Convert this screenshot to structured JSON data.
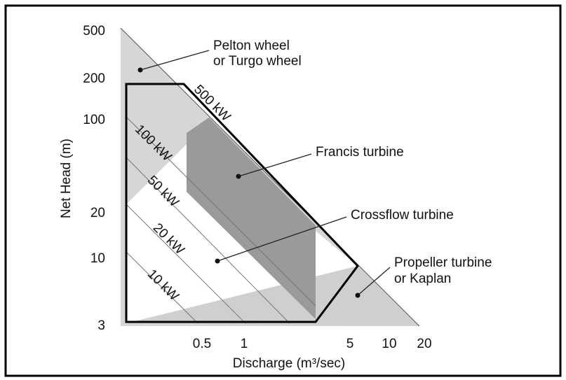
{
  "axes": {
    "y_label": "Net Head (m)",
    "x_label": "Discharge (m³/sec)",
    "y_ticks": [
      "500",
      "200",
      "100",
      "20",
      "10",
      "3"
    ],
    "x_ticks": [
      "0.5",
      "1",
      "5",
      "10",
      "20"
    ]
  },
  "power_lines": [
    "500 kW",
    "100 kW",
    "50 kW",
    "20 kW",
    "10 kW"
  ],
  "regions": {
    "pelton": [
      "Pelton wheel",
      "or Turgo wheel"
    ],
    "francis": "Francis turbine",
    "crossflow": "Crossflow turbine",
    "propeller": [
      "Propeller turbine",
      "or Kaplan"
    ]
  }
}
